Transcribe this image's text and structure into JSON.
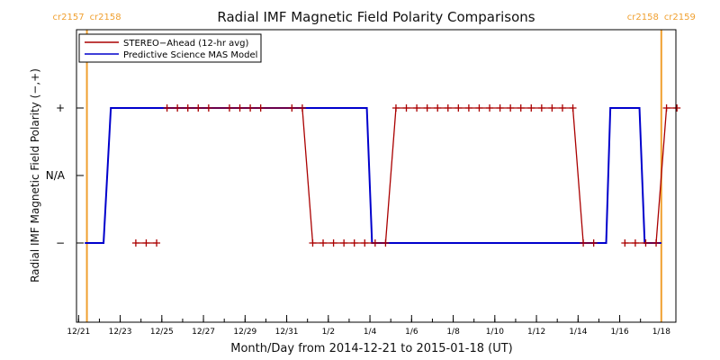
{
  "chart_data": {
    "type": "line",
    "title": "Radial IMF Magnetic Field Polarity Comparisons",
    "xlabel": "Month/Day from 2014-12-21 to 2015-01-18 (UT)",
    "ylabel": "Radial IMF Magnetic Field Polarity (−,+)",
    "x_start": "2014-12-21",
    "x_end": "2015-01-18",
    "x_ticks": [
      "12/21",
      "12/23",
      "12/25",
      "12/27",
      "12/29",
      "12/31",
      "1/2",
      "1/4",
      "1/6",
      "1/8",
      "1/10",
      "1/12",
      "1/14",
      "1/16",
      "1/18"
    ],
    "y_ticks": [
      "−",
      "N/A",
      "+"
    ],
    "ylim": [
      "−",
      "+"
    ],
    "grid": false,
    "legend_position": "top-left",
    "rotation_markers": [
      {
        "date": "2014-12-21.4",
        "left_label": "cr2157",
        "right_label": "cr2158",
        "color": "#f0a030"
      },
      {
        "date": "2015-01-18.0",
        "left_label": "cr2158",
        "right_label": "cr2159",
        "color": "#f0a030"
      }
    ],
    "series": [
      {
        "name": "STEREO−Ahead (12-hr avg)",
        "color": "#aa0000",
        "marker": "+",
        "segments": [
          [
            [
              "2014-12-23.75",
              "−"
            ],
            [
              "2014-12-24.25",
              "−"
            ],
            [
              "2014-12-24.75",
              "−"
            ]
          ],
          [
            [
              "2014-12-25.25",
              "+"
            ],
            [
              "2014-12-25.75",
              "+"
            ],
            [
              "2014-12-26.25",
              "+"
            ],
            [
              "2014-12-26.75",
              "+"
            ],
            [
              "2014-12-27.25",
              "+"
            ],
            [
              "2014-12-28.25",
              "+"
            ],
            [
              "2014-12-28.75",
              "+"
            ],
            [
              "2014-12-29.25",
              "+"
            ],
            [
              "2014-12-29.75",
              "+"
            ],
            [
              "2014-12-31.25",
              "+"
            ],
            [
              "2014-12-31.75",
              "+"
            ],
            [
              "2015-01-01.25",
              "−"
            ],
            [
              "2015-01-01.75",
              "−"
            ],
            [
              "2015-01-02.25",
              "−"
            ],
            [
              "2015-01-02.75",
              "−"
            ],
            [
              "2015-01-03.25",
              "−"
            ],
            [
              "2015-01-03.75",
              "−"
            ],
            [
              "2015-01-04.25",
              "−"
            ],
            [
              "2015-01-04.75",
              "−"
            ],
            [
              "2015-01-05.25",
              "+"
            ],
            [
              "2015-01-05.75",
              "+"
            ],
            [
              "2015-01-06.25",
              "+"
            ],
            [
              "2015-01-06.75",
              "+"
            ],
            [
              "2015-01-07.25",
              "+"
            ],
            [
              "2015-01-07.75",
              "+"
            ],
            [
              "2015-01-08.25",
              "+"
            ],
            [
              "2015-01-08.75",
              "+"
            ],
            [
              "2015-01-09.25",
              "+"
            ],
            [
              "2015-01-09.75",
              "+"
            ],
            [
              "2015-01-10.25",
              "+"
            ],
            [
              "2015-01-10.75",
              "+"
            ],
            [
              "2015-01-11.25",
              "+"
            ],
            [
              "2015-01-11.75",
              "+"
            ],
            [
              "2015-01-12.25",
              "+"
            ],
            [
              "2015-01-12.75",
              "+"
            ],
            [
              "2015-01-13.25",
              "+"
            ],
            [
              "2015-01-13.75",
              "+"
            ],
            [
              "2015-01-14.25",
              "−"
            ],
            [
              "2015-01-14.75",
              "−"
            ]
          ],
          [
            [
              "2015-01-16.25",
              "−"
            ],
            [
              "2015-01-16.75",
              "−"
            ],
            [
              "2015-01-17.25",
              "−"
            ],
            [
              "2015-01-17.75",
              "−"
            ],
            [
              "2015-01-18.25",
              "+"
            ],
            [
              "2015-01-18.75",
              "+"
            ]
          ]
        ]
      },
      {
        "name": "Predictive Science MAS Model",
        "color": "#0000cc",
        "points": [
          [
            "2014-12-21.3",
            "−"
          ],
          [
            "2014-12-22.2",
            "−"
          ],
          [
            "2014-12-22.55",
            "+"
          ],
          [
            "2015-01-03.85",
            "+"
          ],
          [
            "2015-01-04.1",
            "−"
          ],
          [
            "2015-01-15.35",
            "−"
          ],
          [
            "2015-01-15.55",
            "+"
          ],
          [
            "2015-01-16.95",
            "+"
          ],
          [
            "2015-01-17.2",
            "−"
          ],
          [
            "2015-01-18.0",
            "−"
          ]
        ]
      }
    ]
  }
}
